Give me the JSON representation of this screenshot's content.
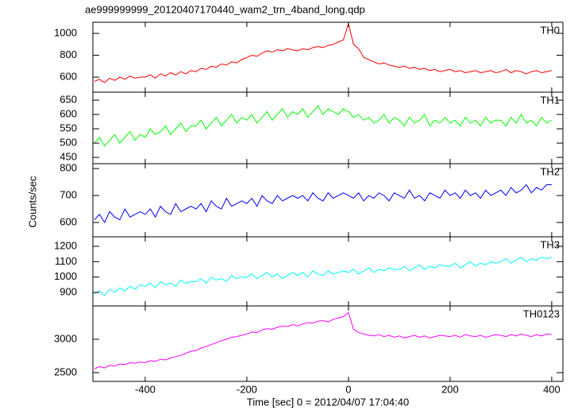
{
  "chart_data": {
    "type": "line",
    "title": "ae999999999_20120407170440_wam2_trn_4band_long.qdp",
    "xlabel": "Time [sec] 0 = 2012/04/07 17:04:40",
    "ylabel": "Counts/sec",
    "xlim": [
      -503,
      422
    ],
    "xticks": [
      -400,
      -200,
      0,
      200,
      400
    ],
    "x": [
      -500,
      -490,
      -480,
      -470,
      -460,
      -450,
      -440,
      -430,
      -420,
      -410,
      -400,
      -390,
      -380,
      -370,
      -360,
      -350,
      -340,
      -330,
      -320,
      -310,
      -300,
      -290,
      -280,
      -270,
      -260,
      -250,
      -240,
      -230,
      -220,
      -210,
      -200,
      -190,
      -180,
      -170,
      -160,
      -150,
      -140,
      -130,
      -120,
      -110,
      -100,
      -90,
      -80,
      -70,
      -60,
      -50,
      -40,
      -30,
      -20,
      -10,
      0,
      10,
      20,
      30,
      40,
      50,
      60,
      70,
      80,
      90,
      100,
      110,
      120,
      130,
      140,
      150,
      160,
      170,
      180,
      190,
      200,
      210,
      220,
      230,
      240,
      250,
      260,
      270,
      280,
      290,
      300,
      310,
      320,
      330,
      340,
      350,
      360,
      370,
      380,
      390,
      400
    ],
    "series": [
      {
        "name": "TH0",
        "color": "#ff0000",
        "ylim": [
          462,
          1102
        ],
        "yticks": [
          600,
          800,
          1000
        ],
        "values": [
          560,
          580,
          550,
          590,
          570,
          600,
          580,
          610,
          590,
          600,
          600,
          620,
          590,
          630,
          610,
          640,
          620,
          650,
          630,
          660,
          650,
          680,
          670,
          700,
          690,
          720,
          710,
          740,
          730,
          760,
          780,
          800,
          790,
          820,
          840,
          830,
          850,
          840,
          860,
          850,
          840,
          860,
          850,
          870,
          880,
          870,
          890,
          900,
          920,
          940,
          1090,
          900,
          860,
          780,
          760,
          740,
          720,
          730,
          710,
          700,
          690,
          700,
          680,
          690,
          670,
          680,
          660,
          670,
          650,
          660,
          670,
          650,
          660,
          640,
          650,
          660,
          640,
          650,
          660,
          640,
          650,
          670,
          640,
          660,
          650,
          630,
          650,
          660,
          640,
          650,
          660
        ]
      },
      {
        "name": "TH1",
        "color": "#00ff00",
        "ylim": [
          428,
          678
        ],
        "yticks": [
          450,
          500,
          550,
          600,
          650
        ],
        "values": [
          500,
          520,
          490,
          510,
          530,
          500,
          520,
          540,
          510,
          530,
          520,
          550,
          530,
          540,
          560,
          530,
          550,
          570,
          540,
          560,
          560,
          580,
          550,
          570,
          590,
          560,
          580,
          600,
          570,
          590,
          580,
          600,
          570,
          590,
          610,
          580,
          600,
          620,
          590,
          610,
          600,
          620,
          590,
          610,
          630,
          600,
          620,
          610,
          600,
          620,
          610,
          590,
          600,
          580,
          590,
          570,
          580,
          600,
          570,
          590,
          580,
          560,
          590,
          570,
          580,
          600,
          560,
          580,
          570,
          590,
          570,
          580,
          560,
          590,
          570,
          580,
          560,
          590,
          570,
          580,
          580,
          560,
          590,
          570,
          600,
          570,
          580,
          560,
          590,
          570,
          580
        ]
      },
      {
        "name": "TH2",
        "color": "#0000ff",
        "ylim": [
          547,
          818
        ],
        "yticks": [
          600,
          700,
          800
        ],
        "values": [
          610,
          630,
          600,
          640,
          620,
          610,
          650,
          620,
          630,
          640,
          630,
          650,
          620,
          660,
          640,
          630,
          670,
          640,
          650,
          660,
          650,
          670,
          640,
          680,
          660,
          650,
          690,
          660,
          670,
          680,
          670,
          690,
          660,
          700,
          680,
          670,
          700,
          680,
          690,
          700,
          690,
          700,
          680,
          710,
          690,
          680,
          710,
          690,
          700,
          710,
          700,
          690,
          710,
          680,
          700,
          690,
          710,
          700,
          680,
          710,
          700,
          690,
          720,
          690,
          700,
          680,
          710,
          700,
          690,
          720,
          700,
          710,
          690,
          720,
          700,
          710,
          690,
          720,
          700,
          710,
          720,
          700,
          730,
          710,
          720,
          740,
          710,
          730,
          720,
          740,
          740
        ]
      },
      {
        "name": "TH3",
        "color": "#00ffff",
        "ylim": [
          812,
          1262
        ],
        "yticks": [
          900,
          1000,
          1100,
          1200
        ],
        "values": [
          890,
          910,
          880,
          920,
          900,
          930,
          910,
          940,
          920,
          950,
          940,
          960,
          930,
          970,
          950,
          960,
          940,
          980,
          960,
          970,
          970,
          990,
          960,
          1000,
          980,
          990,
          970,
          1010,
          990,
          1000,
          1000,
          1020,
          990,
          1010,
          1030,
          1000,
          1020,
          990,
          1010,
          1030,
          1010,
          1030,
          1000,
          1040,
          1020,
          1010,
          1040,
          1020,
          1030,
          1040,
          1030,
          1050,
          1020,
          1040,
          1060,
          1030,
          1050,
          1040,
          1060,
          1050,
          1050,
          1070,
          1040,
          1060,
          1080,
          1050,
          1070,
          1060,
          1080,
          1070,
          1070,
          1090,
          1060,
          1080,
          1100,
          1070,
          1090,
          1080,
          1100,
          1090,
          1100,
          1120,
          1090,
          1110,
          1130,
          1100,
          1120,
          1110,
          1130,
          1120,
          1130
        ]
      },
      {
        "name": "TH0123",
        "color": "#ff00ff",
        "ylim": [
          2369,
          3500
        ],
        "yticks": [
          2500,
          3000
        ],
        "values": [
          2560,
          2590,
          2570,
          2610,
          2600,
          2630,
          2620,
          2650,
          2640,
          2660,
          2650,
          2680,
          2670,
          2700,
          2690,
          2720,
          2740,
          2760,
          2790,
          2820,
          2830,
          2870,
          2890,
          2920,
          2950,
          2980,
          3000,
          3030,
          3040,
          3060,
          3080,
          3110,
          3100,
          3140,
          3160,
          3150,
          3180,
          3200,
          3190,
          3220,
          3200,
          3230,
          3250,
          3240,
          3270,
          3280,
          3260,
          3300,
          3320,
          3340,
          3400,
          3150,
          3100,
          3080,
          3060,
          3050,
          3070,
          3040,
          3060,
          3030,
          3050,
          3020,
          3040,
          3060,
          3030,
          3050,
          3020,
          3040,
          3060,
          3050,
          3040,
          3060,
          3030,
          3070,
          3050,
          3040,
          3060,
          3030,
          3050,
          3070,
          3060,
          3040,
          3070,
          3050,
          3080,
          3060,
          3040,
          3070,
          3050,
          3080,
          3070
        ]
      }
    ]
  }
}
